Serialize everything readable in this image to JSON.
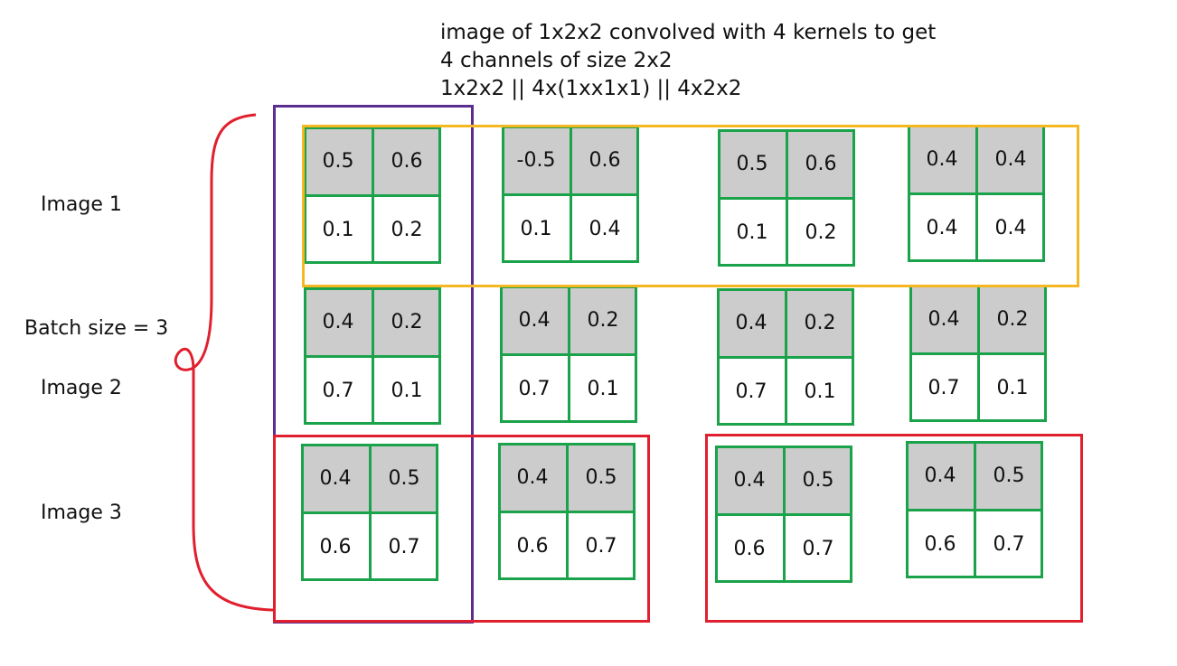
{
  "notes": {
    "line1": "image of 1x2x2 convolved with 4 kernels to get",
    "line2": "4 channels of size 2x2",
    "line3": "1x2x2 || 4x(1xx1x1) || 4x2x2"
  },
  "labels": {
    "image1": "Image 1",
    "image2": "Image 2",
    "image3": "Image 3",
    "batch": "Batch size = 3"
  },
  "colors": {
    "grid": "#1aa34a",
    "highlight": "#cccccc",
    "channel_frame": "#5b2d90",
    "image1_frame": "#f5b823",
    "image3_frame": "#e0202e",
    "brace": "#e0202e"
  },
  "grids": [
    [
      [
        [
          "0.5",
          "0.6"
        ],
        [
          "0.1",
          "0.2"
        ]
      ],
      [
        [
          "-0.5",
          "0.6"
        ],
        [
          "0.1",
          "0.4"
        ]
      ],
      [
        [
          "0.5",
          "0.6"
        ],
        [
          "0.1",
          "0.2"
        ]
      ],
      [
        [
          "0.4",
          "0.4"
        ],
        [
          "0.4",
          "0.4"
        ]
      ]
    ],
    [
      [
        [
          "0.4",
          "0.2"
        ],
        [
          "0.7",
          "0.1"
        ]
      ],
      [
        [
          "0.4",
          "0.2"
        ],
        [
          "0.7",
          "0.1"
        ]
      ],
      [
        [
          "0.4",
          "0.2"
        ],
        [
          "0.7",
          "0.1"
        ]
      ],
      [
        [
          "0.4",
          "0.2"
        ],
        [
          "0.7",
          "0.1"
        ]
      ]
    ],
    [
      [
        [
          "0.4",
          "0.5"
        ],
        [
          "0.6",
          "0.7"
        ]
      ],
      [
        [
          "0.4",
          "0.5"
        ],
        [
          "0.6",
          "0.7"
        ]
      ],
      [
        [
          "0.4",
          "0.5"
        ],
        [
          "0.6",
          "0.7"
        ]
      ],
      [
        [
          "0.4",
          "0.5"
        ],
        [
          "0.6",
          "0.7"
        ]
      ]
    ]
  ]
}
